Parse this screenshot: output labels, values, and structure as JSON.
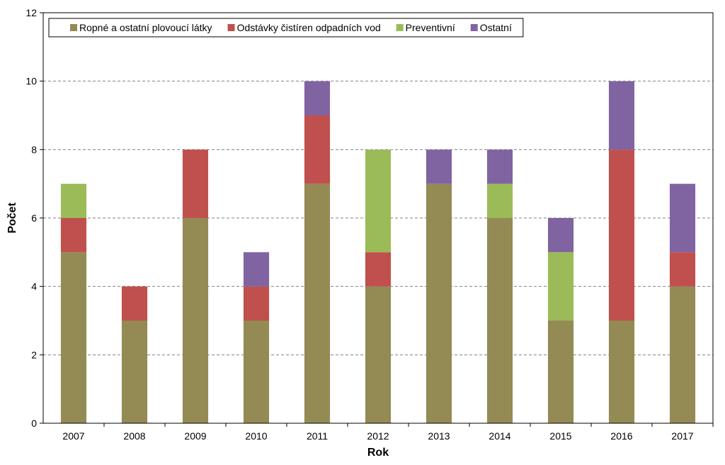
{
  "chart_data": {
    "type": "bar",
    "stacked": true,
    "title": "",
    "xlabel": "Rok",
    "ylabel": "Počet",
    "ylim": [
      0,
      12
    ],
    "yticks": [
      0,
      2,
      4,
      6,
      8,
      10,
      12
    ],
    "grid": "horizontal dashed",
    "legend_position": "top-left",
    "categories": [
      "2007",
      "2008",
      "2009",
      "2010",
      "2011",
      "2012",
      "2013",
      "2014",
      "2015",
      "2016",
      "2017"
    ],
    "series": [
      {
        "name": "Ropné a ostatní plovoucí látky",
        "color": "#948A54",
        "values": [
          5,
          3,
          6,
          3,
          7,
          4,
          7,
          6,
          3,
          3,
          4
        ]
      },
      {
        "name": "Odstávky čistíren odpadních vod",
        "color": "#C0504D",
        "values": [
          1,
          1,
          2,
          1,
          2,
          1,
          0,
          0,
          0,
          5,
          1
        ]
      },
      {
        "name": "Preventivní",
        "color": "#9BBB59",
        "values": [
          1,
          0,
          0,
          0,
          0,
          3,
          0,
          1,
          2,
          0,
          0
        ]
      },
      {
        "name": "Ostatní",
        "color": "#8064A2",
        "values": [
          0,
          0,
          0,
          1,
          1,
          0,
          1,
          1,
          1,
          2,
          2
        ]
      }
    ]
  }
}
